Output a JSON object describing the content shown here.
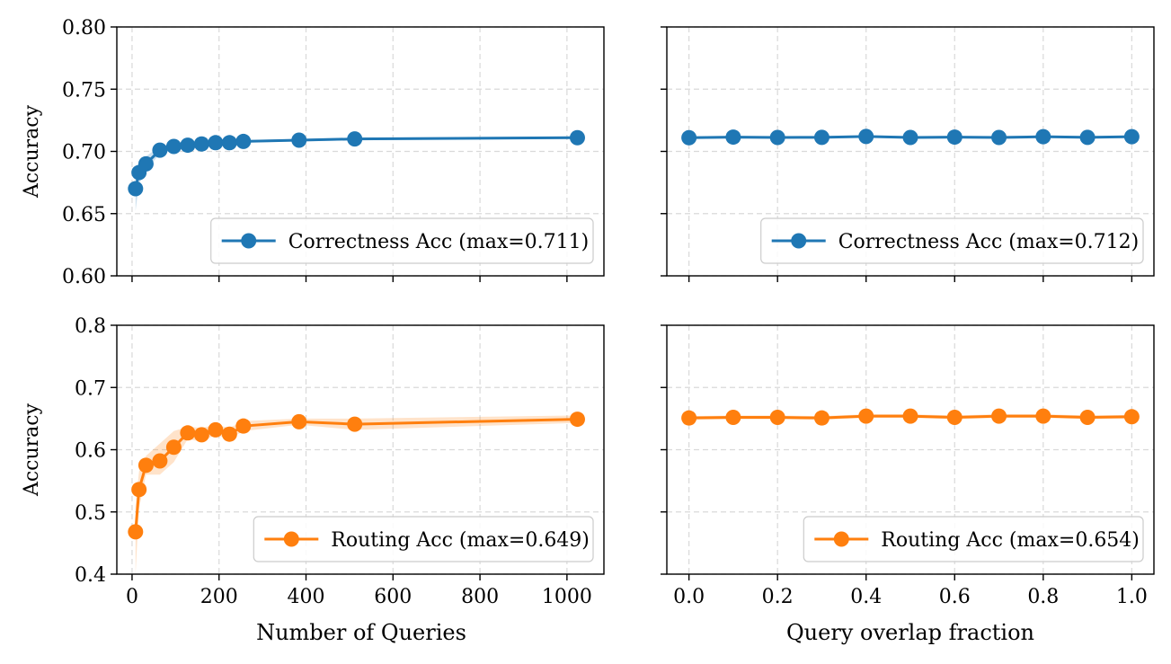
{
  "figure": {
    "xlabels": [
      "Number of Queries",
      "Query overlap fraction"
    ],
    "ylabel": "Accuracy"
  },
  "colors": {
    "blue": "#1f77b4",
    "orange": "#ff7f0e",
    "grid": "#d9d9d9",
    "axis": "#000000"
  },
  "chart_data": [
    {
      "type": "line",
      "panel": "top-left",
      "xlabel": "",
      "ylabel": "Accuracy",
      "xlim": [
        -35,
        1085
      ],
      "ylim": [
        0.6,
        0.8
      ],
      "xticks": [
        0,
        200,
        400,
        600,
        800,
        1000
      ],
      "yticks": [
        0.6,
        0.65,
        0.7,
        0.75,
        0.8
      ],
      "ytick_labels": [
        "0.60",
        "0.65",
        "0.70",
        "0.75",
        "0.80"
      ],
      "show_xtick_labels": false,
      "grid": true,
      "legend_position": "lower-right",
      "series": [
        {
          "name": "Correctness Acc (max=0.711)",
          "color": "blue",
          "x": [
            8,
            16,
            32,
            64,
            96,
            128,
            160,
            192,
            224,
            256,
            384,
            512,
            1024
          ],
          "y": [
            0.67,
            0.683,
            0.69,
            0.701,
            0.704,
            0.705,
            0.706,
            0.707,
            0.707,
            0.708,
            0.709,
            0.71,
            0.711
          ],
          "band_low": [
            0.652,
            0.674,
            0.685,
            0.698,
            0.701,
            0.703,
            0.704,
            0.705,
            0.706,
            0.707,
            0.708,
            0.709,
            0.71
          ],
          "band_high": [
            0.684,
            0.692,
            0.696,
            0.704,
            0.706,
            0.707,
            0.708,
            0.708,
            0.709,
            0.709,
            0.71,
            0.711,
            0.712
          ]
        }
      ]
    },
    {
      "type": "line",
      "panel": "top-right",
      "xlabel": "",
      "ylabel": "",
      "xlim": [
        -0.05,
        1.05
      ],
      "ylim": [
        0.6,
        0.8
      ],
      "xticks": [
        0,
        0.2,
        0.4,
        0.6,
        0.8,
        1.0
      ],
      "yticks": [
        0.6,
        0.65,
        0.7,
        0.75,
        0.8
      ],
      "show_xtick_labels": false,
      "show_ytick_labels": false,
      "grid": true,
      "legend_position": "lower-right",
      "series": [
        {
          "name": "Correctness Acc (max=0.712)",
          "color": "blue",
          "x": [
            0.0,
            0.1,
            0.2,
            0.3,
            0.4,
            0.5,
            0.6,
            0.7,
            0.8,
            0.9,
            1.0
          ],
          "y": [
            0.711,
            0.7115,
            0.7112,
            0.7113,
            0.712,
            0.7112,
            0.7115,
            0.7112,
            0.7118,
            0.7113,
            0.7118
          ],
          "band_low": [
            0.71,
            0.7105,
            0.7102,
            0.7103,
            0.711,
            0.7102,
            0.7105,
            0.7102,
            0.7108,
            0.7103,
            0.7108
          ],
          "band_high": [
            0.712,
            0.7125,
            0.7122,
            0.7123,
            0.713,
            0.7122,
            0.7125,
            0.7122,
            0.7128,
            0.7123,
            0.7128
          ]
        }
      ]
    },
    {
      "type": "line",
      "panel": "bottom-left",
      "xlabel": "Number of Queries",
      "ylabel": "Accuracy",
      "xlim": [
        -35,
        1085
      ],
      "ylim": [
        0.4,
        0.8
      ],
      "xticks": [
        0,
        200,
        400,
        600,
        800,
        1000
      ],
      "xtick_labels": [
        "0",
        "200",
        "400",
        "600",
        "800",
        "1000"
      ],
      "yticks": [
        0.4,
        0.5,
        0.6,
        0.7,
        0.8
      ],
      "ytick_labels": [
        "0.4",
        "0.5",
        "0.6",
        "0.7",
        "0.8"
      ],
      "grid": true,
      "legend_position": "lower-right",
      "series": [
        {
          "name": "Routing Acc (max=0.649)",
          "color": "orange",
          "x": [
            8,
            16,
            32,
            64,
            96,
            128,
            160,
            192,
            224,
            256,
            384,
            512,
            1024
          ],
          "y": [
            0.468,
            0.536,
            0.575,
            0.582,
            0.604,
            0.627,
            0.624,
            0.632,
            0.625,
            0.638,
            0.645,
            0.641,
            0.649
          ],
          "band_low": [
            0.4,
            0.505,
            0.56,
            0.56,
            0.58,
            0.617,
            0.613,
            0.624,
            0.617,
            0.63,
            0.64,
            0.632,
            0.643
          ],
          "band_high": [
            0.51,
            0.565,
            0.59,
            0.61,
            0.63,
            0.637,
            0.635,
            0.64,
            0.635,
            0.646,
            0.65,
            0.65,
            0.655
          ]
        }
      ]
    },
    {
      "type": "line",
      "panel": "bottom-right",
      "xlabel": "Query overlap fraction",
      "ylabel": "",
      "xlim": [
        -0.05,
        1.05
      ],
      "ylim": [
        0.4,
        0.8
      ],
      "xticks": [
        0,
        0.2,
        0.4,
        0.6,
        0.8,
        1.0
      ],
      "xtick_labels": [
        "0.0",
        "0.2",
        "0.4",
        "0.6",
        "0.8",
        "1.0"
      ],
      "yticks": [
        0.4,
        0.5,
        0.6,
        0.7,
        0.8
      ],
      "show_ytick_labels": false,
      "grid": true,
      "legend_position": "lower-right",
      "series": [
        {
          "name": "Routing Acc (max=0.654)",
          "color": "orange",
          "x": [
            0.0,
            0.1,
            0.2,
            0.3,
            0.4,
            0.5,
            0.6,
            0.7,
            0.8,
            0.9,
            1.0
          ],
          "y": [
            0.651,
            0.652,
            0.652,
            0.651,
            0.654,
            0.654,
            0.652,
            0.654,
            0.654,
            0.652,
            0.653
          ],
          "band_low": [
            0.648,
            0.649,
            0.649,
            0.648,
            0.651,
            0.651,
            0.649,
            0.651,
            0.651,
            0.649,
            0.65
          ],
          "band_high": [
            0.654,
            0.655,
            0.655,
            0.654,
            0.657,
            0.657,
            0.655,
            0.657,
            0.657,
            0.655,
            0.656
          ]
        }
      ]
    }
  ]
}
